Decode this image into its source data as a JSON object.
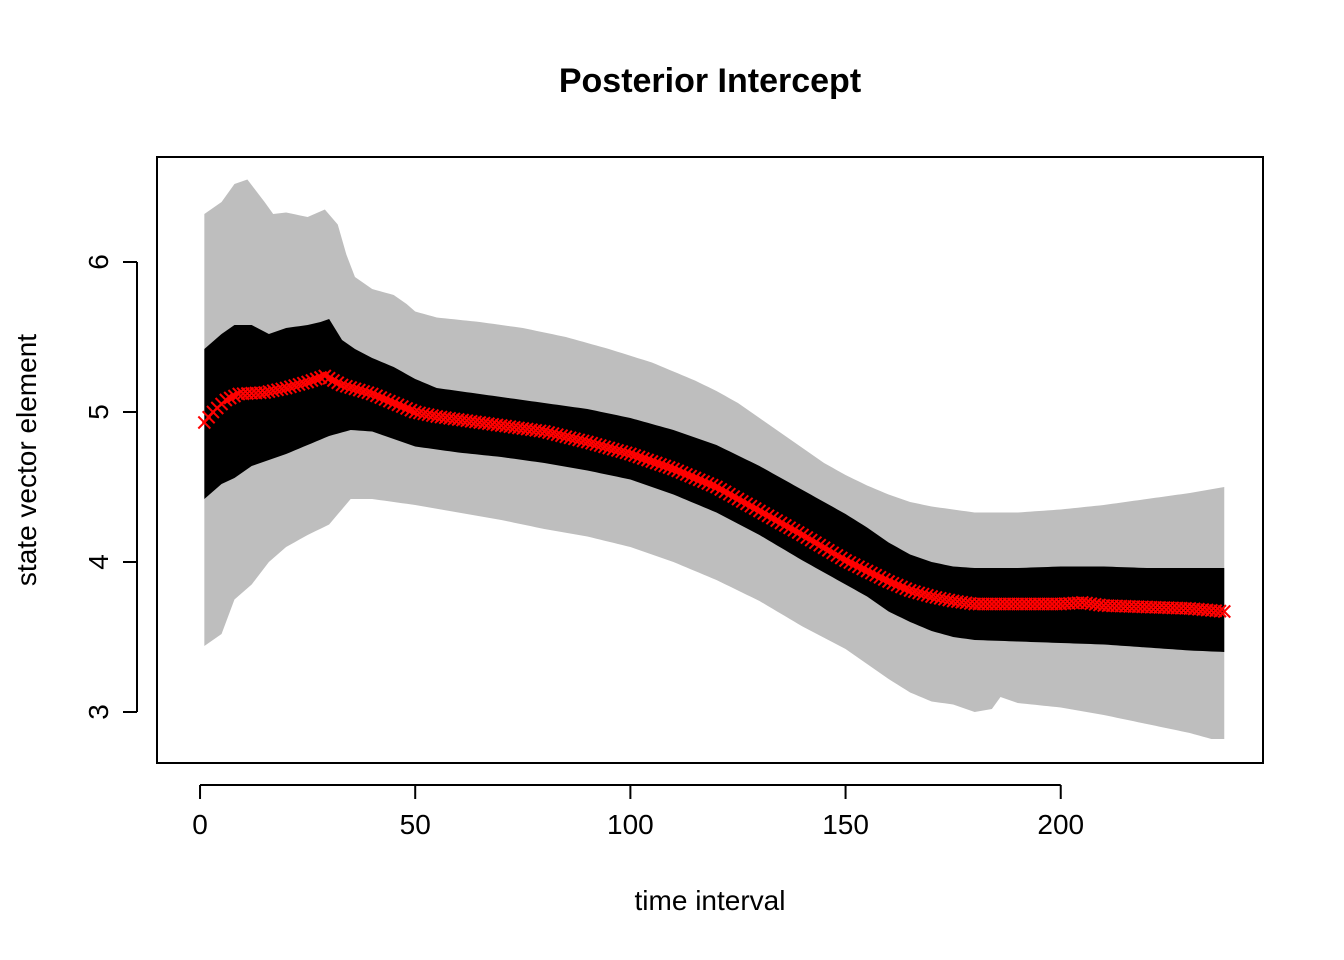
{
  "chart_data": {
    "type": "area",
    "title": "Posterior Intercept",
    "xlabel": "time interval",
    "ylabel": "state vector element",
    "xlim": [
      -10,
      247
    ],
    "ylim": [
      2.66,
      6.7
    ],
    "xticks": [
      0,
      50,
      100,
      150,
      200
    ],
    "yticks": [
      3,
      4,
      5,
      6
    ],
    "grid": false,
    "legend": "none",
    "colors": {
      "outer_band": "#bebebe",
      "inner_band": "#000000",
      "median": "#ff0000"
    },
    "x_range": [
      1,
      238
    ],
    "bands": {
      "outer": {
        "upper": [
          [
            1,
            6.32
          ],
          [
            5,
            6.4
          ],
          [
            8,
            6.52
          ],
          [
            11,
            6.55
          ],
          [
            15,
            6.4
          ],
          [
            17,
            6.32
          ],
          [
            20,
            6.33
          ],
          [
            25,
            6.3
          ],
          [
            29,
            6.35
          ],
          [
            32,
            6.25
          ],
          [
            34,
            6.05
          ],
          [
            36,
            5.9
          ],
          [
            40,
            5.82
          ],
          [
            45,
            5.78
          ],
          [
            48,
            5.72
          ],
          [
            50,
            5.67
          ],
          [
            55,
            5.63
          ],
          [
            65,
            5.6
          ],
          [
            75,
            5.56
          ],
          [
            85,
            5.5
          ],
          [
            95,
            5.42
          ],
          [
            105,
            5.33
          ],
          [
            115,
            5.21
          ],
          [
            120,
            5.14
          ],
          [
            125,
            5.06
          ],
          [
            130,
            4.96
          ],
          [
            135,
            4.86
          ],
          [
            140,
            4.76
          ],
          [
            145,
            4.66
          ],
          [
            150,
            4.58
          ],
          [
            155,
            4.51
          ],
          [
            160,
            4.45
          ],
          [
            165,
            4.4
          ],
          [
            170,
            4.37
          ],
          [
            175,
            4.35
          ],
          [
            180,
            4.33
          ],
          [
            190,
            4.33
          ],
          [
            200,
            4.35
          ],
          [
            210,
            4.38
          ],
          [
            220,
            4.42
          ],
          [
            230,
            4.46
          ],
          [
            238,
            4.5
          ]
        ],
        "lower": [
          [
            1,
            3.44
          ],
          [
            5,
            3.52
          ],
          [
            8,
            3.75
          ],
          [
            12,
            3.85
          ],
          [
            16,
            4.0
          ],
          [
            20,
            4.1
          ],
          [
            25,
            4.18
          ],
          [
            30,
            4.25
          ],
          [
            35,
            4.42
          ],
          [
            40,
            4.42
          ],
          [
            50,
            4.38
          ],
          [
            60,
            4.33
          ],
          [
            70,
            4.28
          ],
          [
            80,
            4.22
          ],
          [
            90,
            4.17
          ],
          [
            100,
            4.1
          ],
          [
            110,
            4.0
          ],
          [
            120,
            3.88
          ],
          [
            130,
            3.74
          ],
          [
            140,
            3.57
          ],
          [
            150,
            3.42
          ],
          [
            155,
            3.32
          ],
          [
            160,
            3.22
          ],
          [
            165,
            3.13
          ],
          [
            170,
            3.07
          ],
          [
            175,
            3.05
          ],
          [
            180,
            3.0
          ],
          [
            184,
            3.02
          ],
          [
            186,
            3.1
          ],
          [
            190,
            3.06
          ],
          [
            200,
            3.03
          ],
          [
            210,
            2.98
          ],
          [
            220,
            2.92
          ],
          [
            230,
            2.86
          ],
          [
            235,
            2.82
          ],
          [
            238,
            2.82
          ]
        ]
      },
      "inner": {
        "upper": [
          [
            1,
            5.42
          ],
          [
            5,
            5.52
          ],
          [
            8,
            5.58
          ],
          [
            12,
            5.58
          ],
          [
            16,
            5.52
          ],
          [
            20,
            5.56
          ],
          [
            25,
            5.58
          ],
          [
            28,
            5.6
          ],
          [
            30,
            5.62
          ],
          [
            33,
            5.48
          ],
          [
            36,
            5.42
          ],
          [
            40,
            5.36
          ],
          [
            45,
            5.3
          ],
          [
            50,
            5.22
          ],
          [
            55,
            5.16
          ],
          [
            60,
            5.14
          ],
          [
            70,
            5.1
          ],
          [
            80,
            5.06
          ],
          [
            90,
            5.02
          ],
          [
            100,
            4.96
          ],
          [
            110,
            4.88
          ],
          [
            120,
            4.78
          ],
          [
            130,
            4.64
          ],
          [
            140,
            4.48
          ],
          [
            150,
            4.32
          ],
          [
            155,
            4.23
          ],
          [
            160,
            4.13
          ],
          [
            165,
            4.05
          ],
          [
            170,
            4.0
          ],
          [
            175,
            3.97
          ],
          [
            180,
            3.96
          ],
          [
            190,
            3.96
          ],
          [
            200,
            3.97
          ],
          [
            210,
            3.97
          ],
          [
            220,
            3.96
          ],
          [
            230,
            3.96
          ],
          [
            238,
            3.96
          ]
        ],
        "lower": [
          [
            1,
            4.42
          ],
          [
            5,
            4.52
          ],
          [
            8,
            4.56
          ],
          [
            12,
            4.64
          ],
          [
            16,
            4.68
          ],
          [
            20,
            4.72
          ],
          [
            25,
            4.78
          ],
          [
            30,
            4.84
          ],
          [
            35,
            4.88
          ],
          [
            40,
            4.87
          ],
          [
            45,
            4.82
          ],
          [
            50,
            4.77
          ],
          [
            60,
            4.73
          ],
          [
            70,
            4.7
          ],
          [
            80,
            4.66
          ],
          [
            90,
            4.61
          ],
          [
            100,
            4.55
          ],
          [
            110,
            4.45
          ],
          [
            120,
            4.33
          ],
          [
            130,
            4.18
          ],
          [
            140,
            4.01
          ],
          [
            150,
            3.85
          ],
          [
            155,
            3.77
          ],
          [
            160,
            3.67
          ],
          [
            165,
            3.6
          ],
          [
            170,
            3.54
          ],
          [
            175,
            3.5
          ],
          [
            180,
            3.48
          ],
          [
            190,
            3.47
          ],
          [
            200,
            3.46
          ],
          [
            210,
            3.45
          ],
          [
            220,
            3.43
          ],
          [
            230,
            3.41
          ],
          [
            238,
            3.4
          ]
        ]
      }
    },
    "median": {
      "marker": "x",
      "anchors": [
        [
          1,
          4.93
        ],
        [
          3,
          5.0
        ],
        [
          6,
          5.08
        ],
        [
          9,
          5.12
        ],
        [
          15,
          5.13
        ],
        [
          20,
          5.16
        ],
        [
          25,
          5.2
        ],
        [
          29,
          5.24
        ],
        [
          33,
          5.18
        ],
        [
          40,
          5.12
        ],
        [
          45,
          5.06
        ],
        [
          50,
          5.0
        ],
        [
          55,
          4.97
        ],
        [
          60,
          4.95
        ],
        [
          70,
          4.91
        ],
        [
          80,
          4.87
        ],
        [
          90,
          4.8
        ],
        [
          100,
          4.72
        ],
        [
          110,
          4.62
        ],
        [
          120,
          4.5
        ],
        [
          130,
          4.34
        ],
        [
          140,
          4.18
        ],
        [
          150,
          4.01
        ],
        [
          155,
          3.94
        ],
        [
          160,
          3.87
        ],
        [
          165,
          3.81
        ],
        [
          170,
          3.77
        ],
        [
          175,
          3.74
        ],
        [
          180,
          3.72
        ],
        [
          190,
          3.72
        ],
        [
          200,
          3.72
        ],
        [
          205,
          3.73
        ],
        [
          210,
          3.71
        ],
        [
          220,
          3.7
        ],
        [
          230,
          3.69
        ],
        [
          238,
          3.67
        ]
      ]
    }
  }
}
